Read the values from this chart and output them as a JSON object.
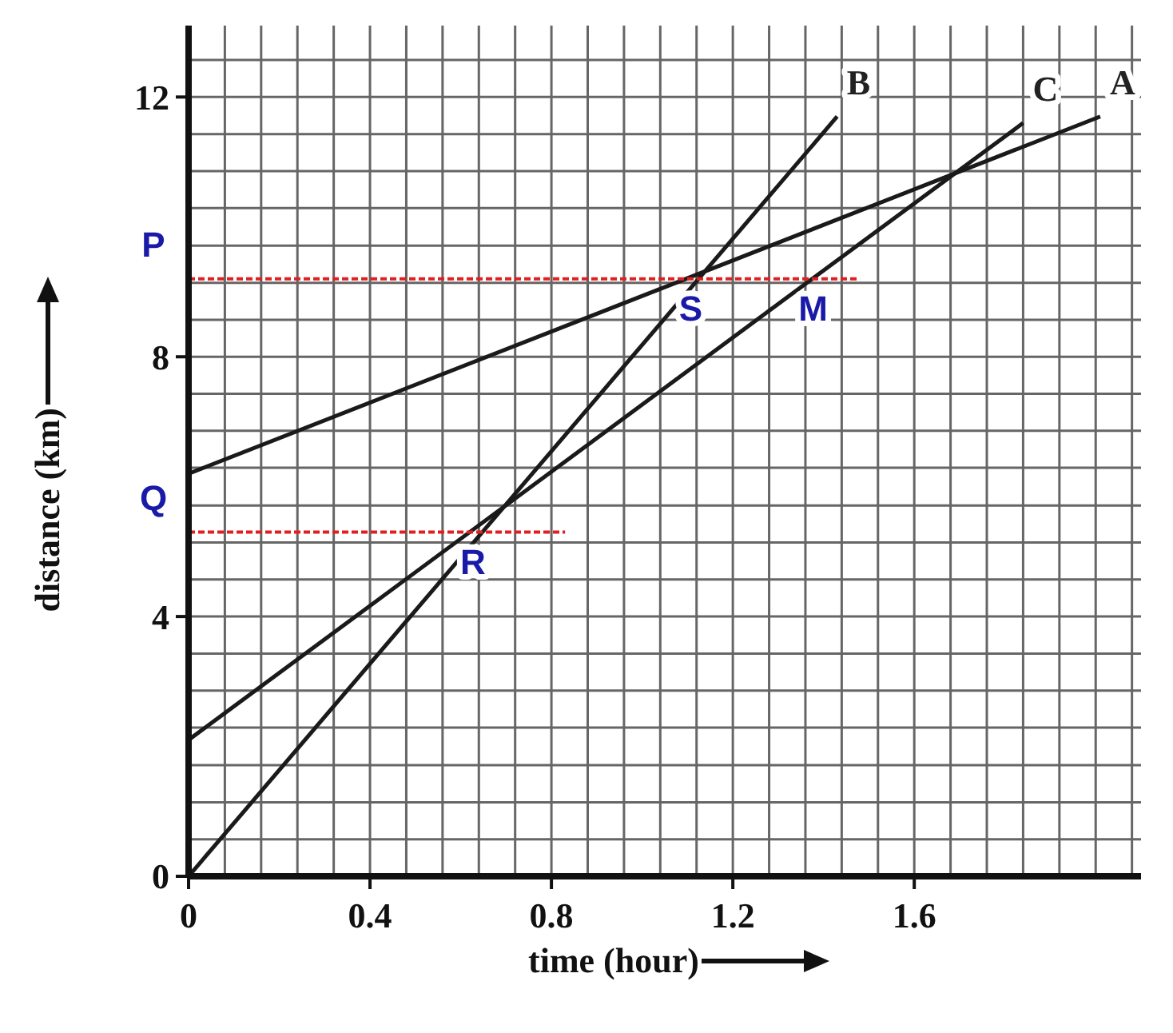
{
  "chart_data": {
    "type": "line",
    "xlabel": "time (hour)",
    "ylabel": "distance (km)",
    "xlim": [
      0,
      2.1
    ],
    "ylim": [
      0,
      13.1
    ],
    "xticks": [
      0,
      {
        "value": 0.08,
        "label": null
      },
      {
        "value": 0.16,
        "label": null
      },
      {
        "value": 0.24,
        "label": null
      },
      {
        "value": 0.32,
        "label": null
      },
      0.4,
      {
        "value": 0.48,
        "label": null
      },
      {
        "value": 0.56,
        "label": null
      },
      {
        "value": 0.64,
        "label": null
      },
      {
        "value": 0.72,
        "label": null
      },
      0.8,
      {
        "value": 0.88,
        "label": null
      },
      {
        "value": 0.96,
        "label": null
      },
      {
        "value": 1.04,
        "label": null
      },
      {
        "value": 1.12,
        "label": null
      },
      1.2,
      {
        "value": 1.28,
        "label": null
      },
      {
        "value": 1.36,
        "label": null
      },
      {
        "value": 1.44,
        "label": null
      },
      {
        "value": 1.52,
        "label": null
      },
      1.6,
      {
        "value": 1.68,
        "label": null
      },
      {
        "value": 1.76,
        "label": null
      },
      {
        "value": 1.84,
        "label": null
      },
      {
        "value": 1.92,
        "label": null
      },
      {
        "value": 2.0,
        "label": null
      },
      {
        "value": 2.08,
        "label": null
      }
    ],
    "yticks": [
      0,
      {
        "value": 0.57,
        "label": null
      },
      {
        "value": 1.14,
        "label": null
      },
      {
        "value": 1.71,
        "label": null
      },
      {
        "value": 2.29,
        "label": null
      },
      {
        "value": 2.86,
        "label": null
      },
      {
        "value": 3.43,
        "label": null
      },
      4,
      {
        "value": 4.57,
        "label": null
      },
      {
        "value": 5.14,
        "label": null
      },
      {
        "value": 5.71,
        "label": null
      },
      {
        "value": 6.29,
        "label": null
      },
      {
        "value": 6.86,
        "label": null
      },
      {
        "value": 7.43,
        "label": null
      },
      8,
      {
        "value": 8.57,
        "label": null
      },
      {
        "value": 9.14,
        "label": null
      },
      {
        "value": 9.71,
        "label": null
      },
      {
        "value": 10.29,
        "label": null
      },
      {
        "value": 10.86,
        "label": null
      },
      {
        "value": 11.43,
        "label": null
      },
      12,
      {
        "value": 12.57,
        "label": null
      }
    ],
    "grid": true,
    "marker": "none",
    "series": [
      {
        "name": "A",
        "color": "#1a1a1a",
        "x": [
          0,
          2.01
        ],
        "values": [
          6.2,
          11.7
        ]
      },
      {
        "name": "B",
        "color": "#1a1a1a",
        "x": [
          0,
          1.43
        ],
        "values": [
          0,
          11.7
        ]
      },
      {
        "name": "C",
        "color": "#1a1a1a",
        "x": [
          0,
          1.84
        ],
        "values": [
          2.1,
          11.6
        ]
      },
      {
        "color": "#e02020",
        "line_style": "dashed",
        "x": [
          0,
          1.48
        ],
        "values": [
          9.2,
          9.2
        ]
      },
      {
        "color": "#e02020",
        "line_style": "dashed",
        "x": [
          0,
          0.83
        ],
        "values": [
          5.3,
          5.3
        ]
      }
    ],
    "annotations": [
      {
        "text": "P",
        "x": 0,
        "y": 9.2
      },
      {
        "text": "Q",
        "x": 0,
        "y": 5.3
      },
      {
        "text": "R",
        "x": 0.62,
        "y": 5.3
      },
      {
        "text": "S",
        "x": 1.1,
        "y": 9.2
      },
      {
        "text": "M",
        "x": 1.37,
        "y": 9.2
      }
    ]
  }
}
